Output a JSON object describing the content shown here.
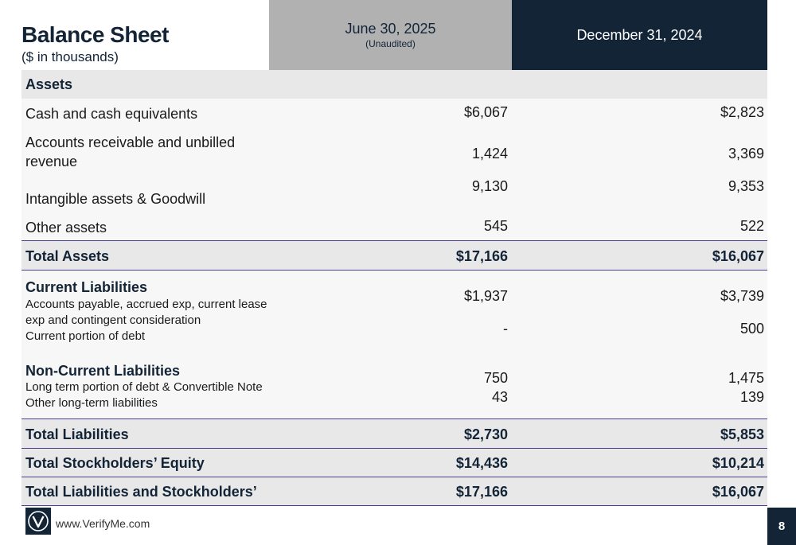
{
  "header": {
    "title": "Balance Sheet",
    "subtitle": "($ in thousands)"
  },
  "columns": {
    "current": {
      "label": "June 30, 2025",
      "note": "(Unaudited)"
    },
    "prior": {
      "label": "December 31, 2024"
    }
  },
  "assets": {
    "heading": "Assets",
    "cash": {
      "label": "Cash and cash equivalents",
      "current": "$6,067",
      "prior": "$2,823"
    },
    "receivables": {
      "label_line1": "Accounts receivable and unbilled",
      "label_line2": "revenue",
      "current": "1,424",
      "prior": "3,369"
    },
    "intangibles": {
      "label": "Intangible assets & Goodwill",
      "current": "9,130",
      "prior": "9,353"
    },
    "other": {
      "label": "Other assets",
      "current": "545",
      "prior": "522"
    },
    "total": {
      "label": "Total Assets",
      "current": "$17,166",
      "prior": "$16,067"
    }
  },
  "liabilities": {
    "current_heading": "Current Liabilities",
    "payables": {
      "label_line1": "Accounts payable, accrued exp, current lease",
      "label_line2": "exp and contingent consideration",
      "current": "$1,937",
      "prior": "$3,739"
    },
    "current_debt": {
      "label": "Current portion of debt",
      "current": "-",
      "prior": "500"
    },
    "noncurrent_heading": "Non-Current Liabilities",
    "long_term_debt": {
      "label": "Long term portion of debt & Convertible Note",
      "current": "750",
      "prior": "1,475"
    },
    "other_long_term": {
      "label": "Other long-term liabilities",
      "current": "43",
      "prior": "139"
    }
  },
  "totals": {
    "liabilities": {
      "label": "Total Liabilities",
      "current": "$2,730",
      "prior": "$5,853"
    },
    "equity": {
      "label": "Total Stockholders’ Equity",
      "current": "$14,436",
      "prior": "$10,214"
    },
    "liabilities_and_equity": {
      "label": "Total Liabilities and Stockholders’",
      "current": "$17,166",
      "prior": "$16,067"
    }
  },
  "footer": {
    "logo_icon": "verifyme-logo-icon",
    "url": "www.VerifyMe.com",
    "page_number": "8"
  },
  "colors": {
    "navy": "#132437",
    "header_gray": "#b1b1b1",
    "row_gray": "#e8e8e8",
    "rule_purple": "#4d3d8a"
  }
}
